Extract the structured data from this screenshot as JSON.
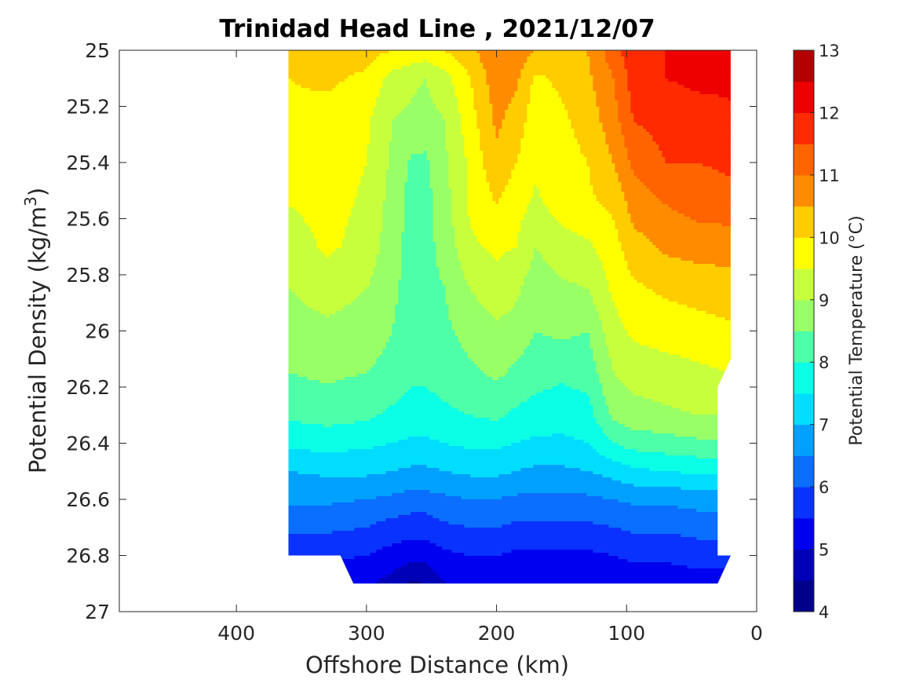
{
  "chart_data": {
    "type": "heatmap",
    "title": "Trinidad Head Line , 2021/12/07",
    "xlabel": "Offshore Distance (km)",
    "ylabel": "Potential Density (kg/m",
    "ylabel_exponent": "3",
    "ylabel_close": ")",
    "xlim": [
      490,
      0
    ],
    "ylim": [
      25,
      27
    ],
    "x_reversed": true,
    "y_reversed": true,
    "xticks": [
      400,
      300,
      200,
      100,
      0
    ],
    "yticks": [
      "25",
      "25.2",
      "25.4",
      "25.6",
      "25.8",
      "26",
      "26.2",
      "26.4",
      "26.6",
      "26.8",
      "27"
    ],
    "colorbar": {
      "label": "Potential Temperature (°C)",
      "range": [
        4,
        13
      ],
      "ticks": [
        "4",
        "5",
        "6",
        "7",
        "8",
        "9",
        "10",
        "11",
        "12",
        "13"
      ],
      "levels": [
        {
          "from": 4.0,
          "to": 4.5,
          "color": "#00008b"
        },
        {
          "from": 4.5,
          "to": 5.0,
          "color": "#0000b8"
        },
        {
          "from": 5.0,
          "to": 5.5,
          "color": "#0000f0"
        },
        {
          "from": 5.5,
          "to": 6.0,
          "color": "#0a32ff"
        },
        {
          "from": 6.0,
          "to": 6.5,
          "color": "#0a6eff"
        },
        {
          "from": 6.5,
          "to": 7.0,
          "color": "#00a0ff"
        },
        {
          "from": 7.0,
          "to": 7.5,
          "color": "#00ddff"
        },
        {
          "from": 7.5,
          "to": 8.0,
          "color": "#0affe6"
        },
        {
          "from": 8.0,
          "to": 8.5,
          "color": "#4dffa8"
        },
        {
          "from": 8.5,
          "to": 9.0,
          "color": "#99ff66"
        },
        {
          "from": 9.0,
          "to": 9.5,
          "color": "#c8ff3c"
        },
        {
          "from": 9.5,
          "to": 10.0,
          "color": "#ffff00"
        },
        {
          "from": 10.0,
          "to": 10.5,
          "color": "#ffcc00"
        },
        {
          "from": 10.5,
          "to": 11.0,
          "color": "#ff8c00"
        },
        {
          "from": 11.0,
          "to": 11.5,
          "color": "#ff6400"
        },
        {
          "from": 11.5,
          "to": 12.0,
          "color": "#ff2a00"
        },
        {
          "from": 12.0,
          "to": 12.5,
          "color": "#ee0000"
        },
        {
          "from": 12.5,
          "to": 13.0,
          "color": "#b40000"
        }
      ]
    },
    "distances_km": [
      360,
      330,
      300,
      280,
      265,
      255,
      240,
      220,
      200,
      185,
      170,
      150,
      130,
      110,
      95,
      70,
      45,
      20
    ],
    "temperature_by_density": [
      {
        "sigma": 25.0,
        "t": [
          10.2,
          10.3,
          10.2,
          10.0,
          9.9,
          9.8,
          10.0,
          10.4,
          10.9,
          10.8,
          10.5,
          10.3,
          10.5,
          11.3,
          11.8,
          12.0,
          12.1,
          12.2
        ]
      },
      {
        "sigma": 25.1,
        "t": [
          10.0,
          10.1,
          9.9,
          9.3,
          9.1,
          9.0,
          9.3,
          10.0,
          10.8,
          10.6,
          9.9,
          10.1,
          10.4,
          11.0,
          11.7,
          12.0,
          12.1,
          12.1
        ]
      },
      {
        "sigma": 25.25,
        "t": [
          9.9,
          9.8,
          9.6,
          9.0,
          8.9,
          8.8,
          9.0,
          9.8,
          10.6,
          10.3,
          9.7,
          9.9,
          10.2,
          10.8,
          11.5,
          11.7,
          11.8,
          11.9
        ]
      },
      {
        "sigma": 25.4,
        "t": [
          9.8,
          9.8,
          9.5,
          8.9,
          8.4,
          8.4,
          8.9,
          9.6,
          10.4,
          10.0,
          9.6,
          9.8,
          10.0,
          10.5,
          11.1,
          11.5,
          11.5,
          11.6
        ]
      },
      {
        "sigma": 25.55,
        "t": [
          9.5,
          9.7,
          9.4,
          8.8,
          8.3,
          8.3,
          8.8,
          9.6,
          10.0,
          9.7,
          9.4,
          9.7,
          9.9,
          10.1,
          10.7,
          11.0,
          11.2,
          11.3
        ]
      },
      {
        "sigma": 25.7,
        "t": [
          9.2,
          9.6,
          9.3,
          8.7,
          8.3,
          8.3,
          8.7,
          9.4,
          9.6,
          9.5,
          9.0,
          9.3,
          9.4,
          9.8,
          10.3,
          10.6,
          10.7,
          10.7
        ]
      },
      {
        "sigma": 25.85,
        "t": [
          9.0,
          9.2,
          9.0,
          8.6,
          8.3,
          8.3,
          8.5,
          9.0,
          9.3,
          9.1,
          8.7,
          8.9,
          9.0,
          9.6,
          9.9,
          10.1,
          10.2,
          10.3
        ]
      },
      {
        "sigma": 26.0,
        "t": [
          8.8,
          8.9,
          8.8,
          8.5,
          8.2,
          8.2,
          8.4,
          8.7,
          8.9,
          8.8,
          8.5,
          8.6,
          8.5,
          9.3,
          9.6,
          9.7,
          9.8,
          9.9
        ]
      },
      {
        "sigma": 26.15,
        "t": [
          8.5,
          8.6,
          8.5,
          8.3,
          8.1,
          8.1,
          8.2,
          8.4,
          8.6,
          8.4,
          8.2,
          8.1,
          8.2,
          9.0,
          9.2,
          9.3,
          9.4,
          9.5
        ]
      },
      {
        "sigma": 26.3,
        "t": [
          8.1,
          8.2,
          8.1,
          7.9,
          7.8,
          7.8,
          7.9,
          8.0,
          8.1,
          7.9,
          7.8,
          7.7,
          7.8,
          8.6,
          8.8,
          8.9,
          9.0,
          9.0
        ]
      },
      {
        "sigma": 26.4,
        "t": [
          7.6,
          7.7,
          7.6,
          7.5,
          7.4,
          7.4,
          7.5,
          7.6,
          7.6,
          7.5,
          7.4,
          7.4,
          7.5,
          8.0,
          8.2,
          8.3,
          8.4,
          8.5
        ]
      },
      {
        "sigma": 26.5,
        "t": [
          7.0,
          7.1,
          7.1,
          7.0,
          6.9,
          6.9,
          7.0,
          7.1,
          7.1,
          7.0,
          6.9,
          6.9,
          7.0,
          7.2,
          7.4,
          7.5,
          7.6,
          7.6
        ]
      },
      {
        "sigma": 26.6,
        "t": [
          6.6,
          6.6,
          6.5,
          6.4,
          6.3,
          6.3,
          6.4,
          6.5,
          6.5,
          6.4,
          6.4,
          6.4,
          6.4,
          6.5,
          6.6,
          6.6,
          6.7,
          6.7
        ]
      },
      {
        "sigma": 26.7,
        "t": [
          6.1,
          6.1,
          6.0,
          5.8,
          5.7,
          5.7,
          5.9,
          6.0,
          6.0,
          5.9,
          5.9,
          5.9,
          5.9,
          6.0,
          6.1,
          6.1,
          6.2,
          6.2
        ]
      },
      {
        "sigma": 26.8,
        "t": [
          5.7,
          5.6,
          5.5,
          5.3,
          5.2,
          5.2,
          5.4,
          5.5,
          5.5,
          5.4,
          5.4,
          5.4,
          5.4,
          5.5,
          5.6,
          5.6,
          5.7,
          5.7
        ]
      },
      {
        "sigma": 26.9,
        "t": [
          null,
          null,
          5.1,
          4.8,
          4.4,
          4.5,
          5.0,
          5.1,
          5.1,
          5.0,
          5.0,
          5.0,
          5.0,
          5.1,
          null,
          null,
          null,
          null
        ]
      }
    ],
    "valid_region": {
      "x": [
        360,
        360,
        330,
        320,
        310,
        30,
        20,
        20,
        30,
        30,
        20,
        20
      ],
      "y": [
        25.0,
        26.8,
        26.8,
        26.8,
        26.9,
        26.9,
        26.8,
        26.8,
        26.8,
        26.2,
        26.1,
        25.0
      ]
    },
    "grid": false
  }
}
